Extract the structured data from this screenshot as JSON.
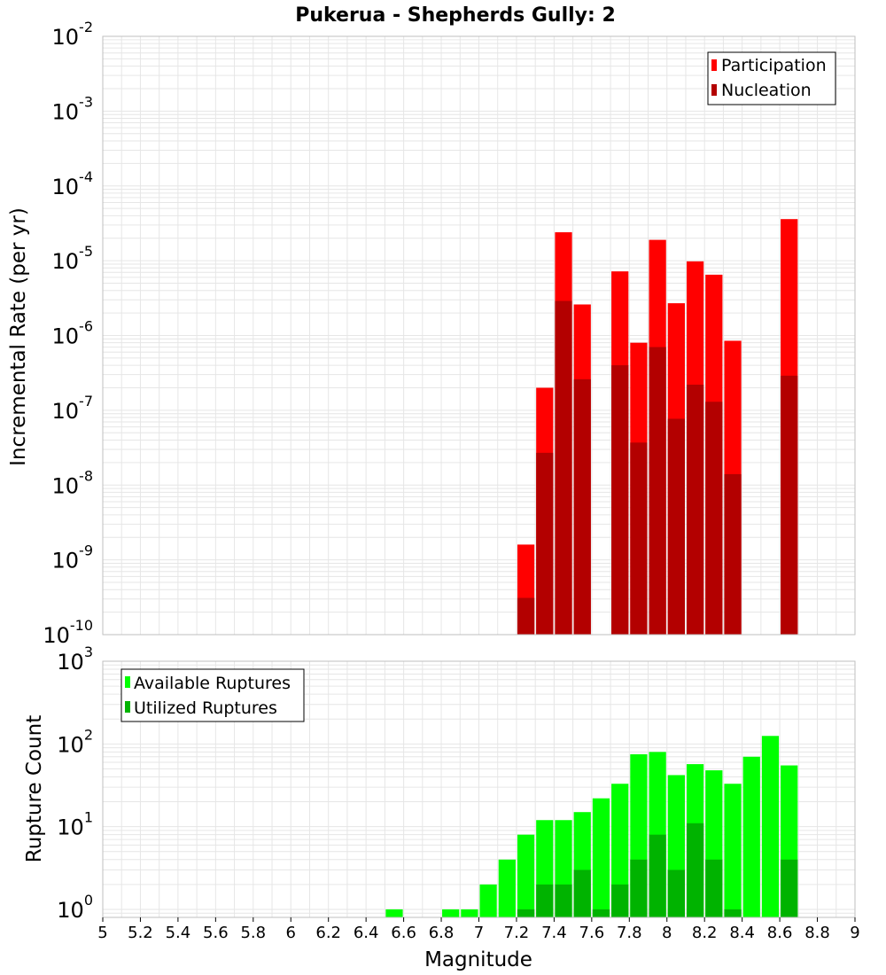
{
  "title": "Pukerua - Shepherds Gully: 2",
  "colors": {
    "participation": "#ff0000",
    "nucleation": "#b30000",
    "available": "#00ff00",
    "utilized": "#00b300",
    "grid": "#e6e6e6",
    "frame": "#bfbfbf"
  },
  "chart_data": [
    {
      "type": "bar",
      "ylabel": "Incremental Rate (per yr)",
      "yscale": "log",
      "ylim": [
        1e-10,
        0.01
      ],
      "xlim": [
        5,
        9
      ],
      "legend_position": "top-right",
      "grid": true,
      "series": [
        {
          "name": "Participation",
          "x": [
            7.25,
            7.35,
            7.45,
            7.55,
            7.75,
            7.85,
            7.95,
            8.05,
            8.15,
            8.25,
            8.35,
            8.65
          ],
          "values": [
            1.6e-09,
            2e-07,
            2.4e-05,
            2.6e-06,
            7.2e-06,
            8e-07,
            1.9e-05,
            2.7e-06,
            9.8e-06,
            6.5e-06,
            8.5e-07,
            3.6e-05
          ]
        },
        {
          "name": "Nucleation",
          "x": [
            7.25,
            7.35,
            7.45,
            7.55,
            7.75,
            7.85,
            7.95,
            8.05,
            8.15,
            8.25,
            8.35,
            8.65
          ],
          "values": [
            3.1e-10,
            2.7e-08,
            2.9e-06,
            2.6e-07,
            4e-07,
            3.7e-08,
            7e-07,
            7.7e-08,
            2.2e-07,
            1.3e-07,
            1.4e-08,
            2.9e-07
          ]
        }
      ]
    },
    {
      "type": "bar",
      "xlabel": "Magnitude",
      "ylabel": "Rupture Count",
      "yscale": "log",
      "ylim": [
        0.8,
        1000
      ],
      "xlim": [
        5,
        9
      ],
      "xticks": [
        "5",
        "5.2",
        "5.4",
        "5.6",
        "5.8",
        "6",
        "6.2",
        "6.4",
        "6.6",
        "6.8",
        "7",
        "7.2",
        "7.4",
        "7.6",
        "7.8",
        "8",
        "8.2",
        "8.4",
        "8.6",
        "8.8",
        "9"
      ],
      "legend_position": "top-left",
      "grid": true,
      "series": [
        {
          "name": "Available Ruptures",
          "x": [
            6.55,
            6.85,
            6.95,
            7.05,
            7.15,
            7.25,
            7.35,
            7.45,
            7.55,
            7.65,
            7.75,
            7.85,
            7.95,
            8.05,
            8.15,
            8.25,
            8.35,
            8.45,
            8.55,
            8.65
          ],
          "values": [
            1,
            1,
            1,
            2,
            4,
            8,
            12,
            12,
            15,
            22,
            33,
            75,
            80,
            42,
            57,
            48,
            33,
            70,
            125,
            55
          ]
        },
        {
          "name": "Utilized Ruptures",
          "x": [
            7.25,
            7.35,
            7.45,
            7.55,
            7.65,
            7.75,
            7.85,
            7.95,
            8.05,
            8.15,
            8.25,
            8.35,
            8.65
          ],
          "values": [
            1,
            2,
            2,
            3,
            1,
            2,
            4,
            8,
            3,
            11,
            4,
            1,
            4
          ]
        }
      ]
    }
  ]
}
